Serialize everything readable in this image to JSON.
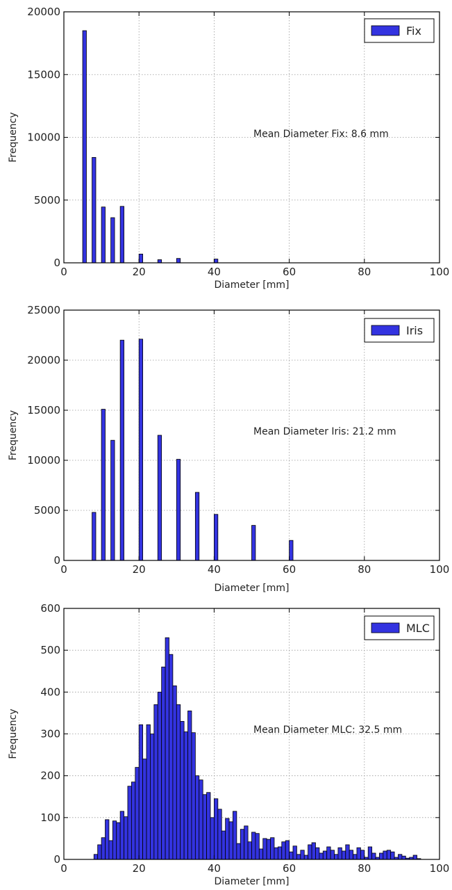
{
  "chart_data": [
    {
      "type": "bar",
      "xlabel": "Diameter [mm]",
      "ylabel": "Frequency",
      "xlim": [
        0,
        100
      ],
      "ylim": [
        0,
        20000
      ],
      "xticks": [
        "0",
        "20",
        "40",
        "60",
        "80",
        "100"
      ],
      "yticks": [
        "0",
        "5000",
        "10000",
        "15000",
        "20000"
      ],
      "grid": true,
      "legend": "top-right",
      "series": [
        {
          "name": "Fix",
          "color": "#3333e0",
          "x": [
            5,
            7.5,
            10,
            12.5,
            15,
            20,
            25,
            30,
            40
          ],
          "values": [
            18500,
            8400,
            4450,
            3600,
            4500,
            700,
            250,
            350,
            300
          ]
        }
      ],
      "annotation": "Mean Diameter Fix: 8.6 mm"
    },
    {
      "type": "bar",
      "xlabel": "Diameter [mm]",
      "ylabel": "Frequency",
      "xlim": [
        0,
        100
      ],
      "ylim": [
        0,
        25000
      ],
      "xticks": [
        "0",
        "20",
        "40",
        "60",
        "80",
        "100"
      ],
      "yticks": [
        "0",
        "5000",
        "10000",
        "15000",
        "20000",
        "25000"
      ],
      "grid": true,
      "legend": "top-right",
      "series": [
        {
          "name": "Iris",
          "color": "#3333e0",
          "x": [
            7.5,
            10,
            12.5,
            15,
            20,
            25,
            30,
            35,
            40,
            50,
            60
          ],
          "values": [
            4800,
            15100,
            12000,
            22000,
            22100,
            12500,
            10100,
            6800,
            4600,
            3500,
            2000
          ]
        }
      ],
      "annotation": "Mean Diameter Iris: 21.2 mm"
    },
    {
      "type": "bar",
      "xlabel": "Diameter [mm]",
      "ylabel": "Frequency",
      "xlim": [
        0,
        100
      ],
      "ylim": [
        0,
        600
      ],
      "xticks": [
        "0",
        "20",
        "40",
        "60",
        "80",
        "100"
      ],
      "yticks": [
        "0",
        "100",
        "200",
        "300",
        "400",
        "500",
        "600"
      ],
      "grid": true,
      "legend": "top-right",
      "bin_start": 8,
      "bin_width": 1,
      "series": [
        {
          "name": "MLC",
          "color": "#3333e0",
          "values": [
            12,
            35,
            52,
            95,
            45,
            92,
            88,
            115,
            102,
            175,
            185,
            220,
            322,
            240,
            322,
            300,
            370,
            400,
            460,
            530,
            490,
            415,
            370,
            330,
            305,
            355,
            303,
            200,
            190,
            155,
            160,
            100,
            145,
            120,
            68,
            98,
            90,
            115,
            38,
            72,
            80,
            42,
            65,
            62,
            25,
            50,
            48,
            52,
            28,
            30,
            42,
            45,
            18,
            32,
            12,
            22,
            10,
            35,
            40,
            28,
            15,
            20,
            30,
            22,
            12,
            28,
            20,
            35,
            22,
            12,
            28,
            22,
            5,
            30,
            15,
            5,
            15,
            20,
            22,
            18,
            5,
            12,
            8,
            3,
            5,
            10,
            2
          ]
        }
      ],
      "annotation": "Mean Diameter MLC: 32.5 mm"
    }
  ]
}
